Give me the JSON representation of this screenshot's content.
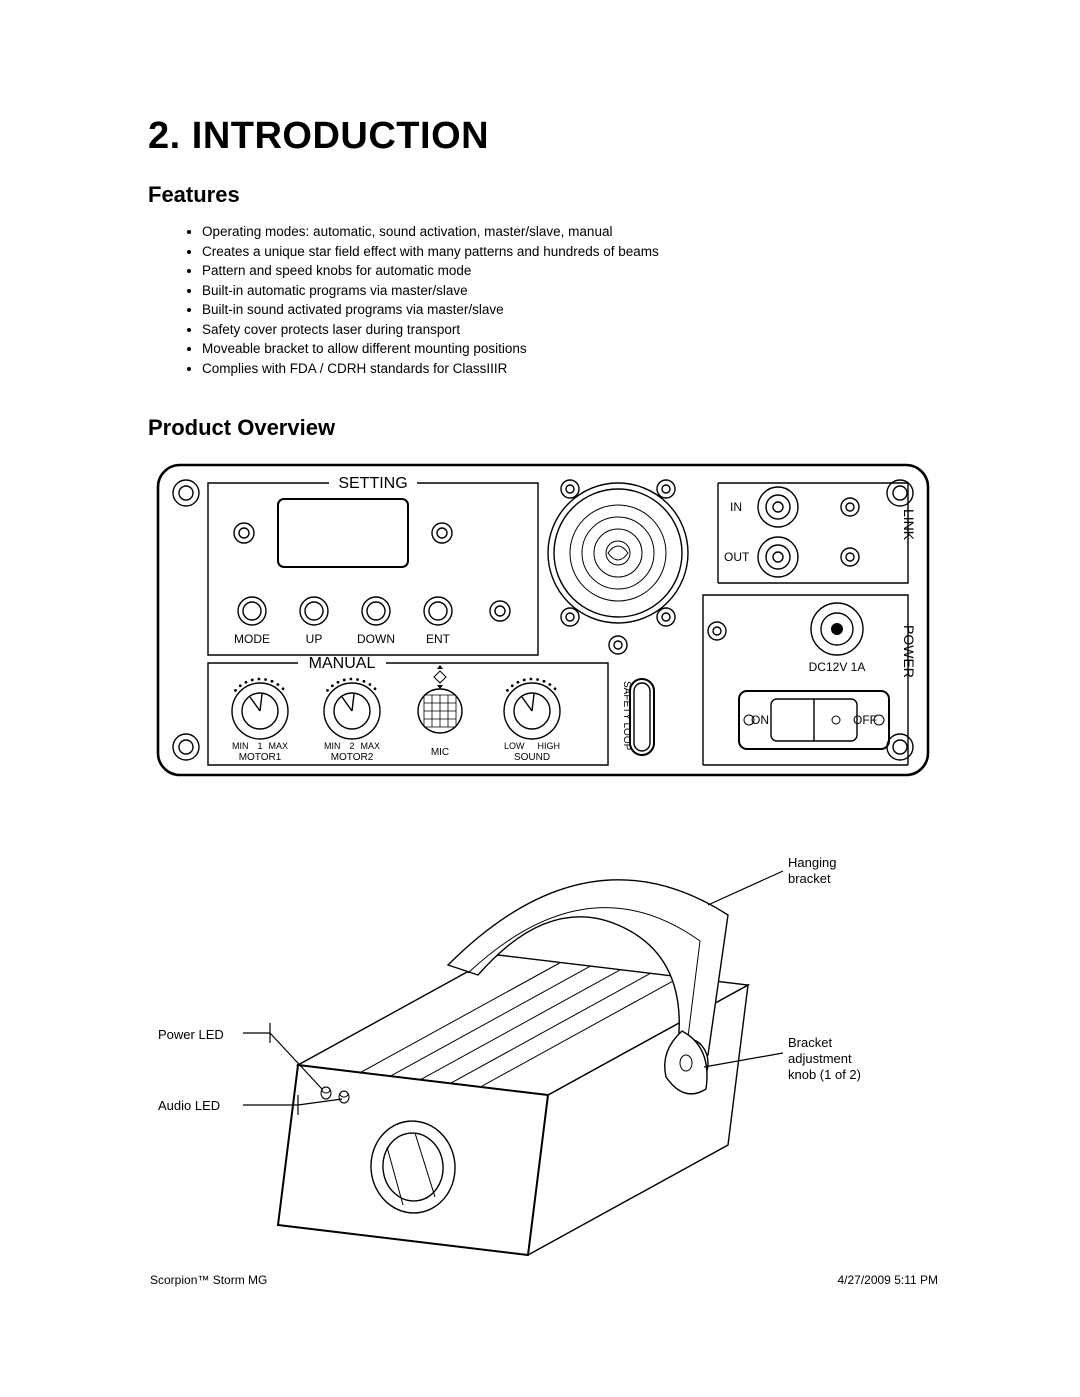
{
  "section": {
    "number": "2.",
    "title_text": "INTRODUCTION"
  },
  "features": {
    "heading": "Features",
    "items": [
      "Operating modes: automatic, sound activation, master/slave, manual",
      "Creates a unique star field effect with many patterns and hundreds of beams",
      "Pattern and speed knobs for automatic mode",
      "Built-in automatic programs via master/slave",
      "Built-in sound activated programs via master/slave",
      "Safety cover protects laser during transport",
      "Moveable bracket to allow different mounting positions",
      "Complies with FDA / CDRH standards for ClassIIIR"
    ]
  },
  "overview": {
    "heading": "Product Overview"
  },
  "rear_panel": {
    "section_setting_label": "SETTING",
    "section_manual_label": "MANUAL",
    "buttons": [
      "MODE",
      "UP",
      "DOWN",
      "ENT"
    ],
    "knobs": [
      {
        "left": "MIN",
        "mid": "1",
        "right": "MAX",
        "name": "MOTOR1"
      },
      {
        "left": "MIN",
        "mid": "2",
        "right": "MAX",
        "name": "MOTOR2"
      },
      {
        "left": "LOW",
        "mid": "",
        "right": "HIGH",
        "name": "SOUND"
      }
    ],
    "mic_label": "MIC",
    "safety_loop_label": "SAFETY LOOP",
    "link_label": "LINK",
    "link_in": "IN",
    "link_out": "OUT",
    "power_label": "POWER",
    "dc_label": "DC12V  1A",
    "switch_on": "ON",
    "switch_off": "OFF"
  },
  "device_diagram": {
    "callouts": {
      "power_led": "Power LED",
      "audio_led": "Audio LED",
      "hanging_bracket": "Hanging\nbracket",
      "bracket_knob": "Bracket\nadjustment\nknob (1 of 2)"
    }
  },
  "footer": {
    "left": "Scorpion™ Storm MG",
    "right": "4/27/2009 5:11 PM"
  },
  "style": {
    "stroke": "#000000",
    "thin": 1.4,
    "mid": 2.0,
    "thick": 2.6,
    "text_color": "#000000",
    "panel_font": 14,
    "small_font": 10
  }
}
